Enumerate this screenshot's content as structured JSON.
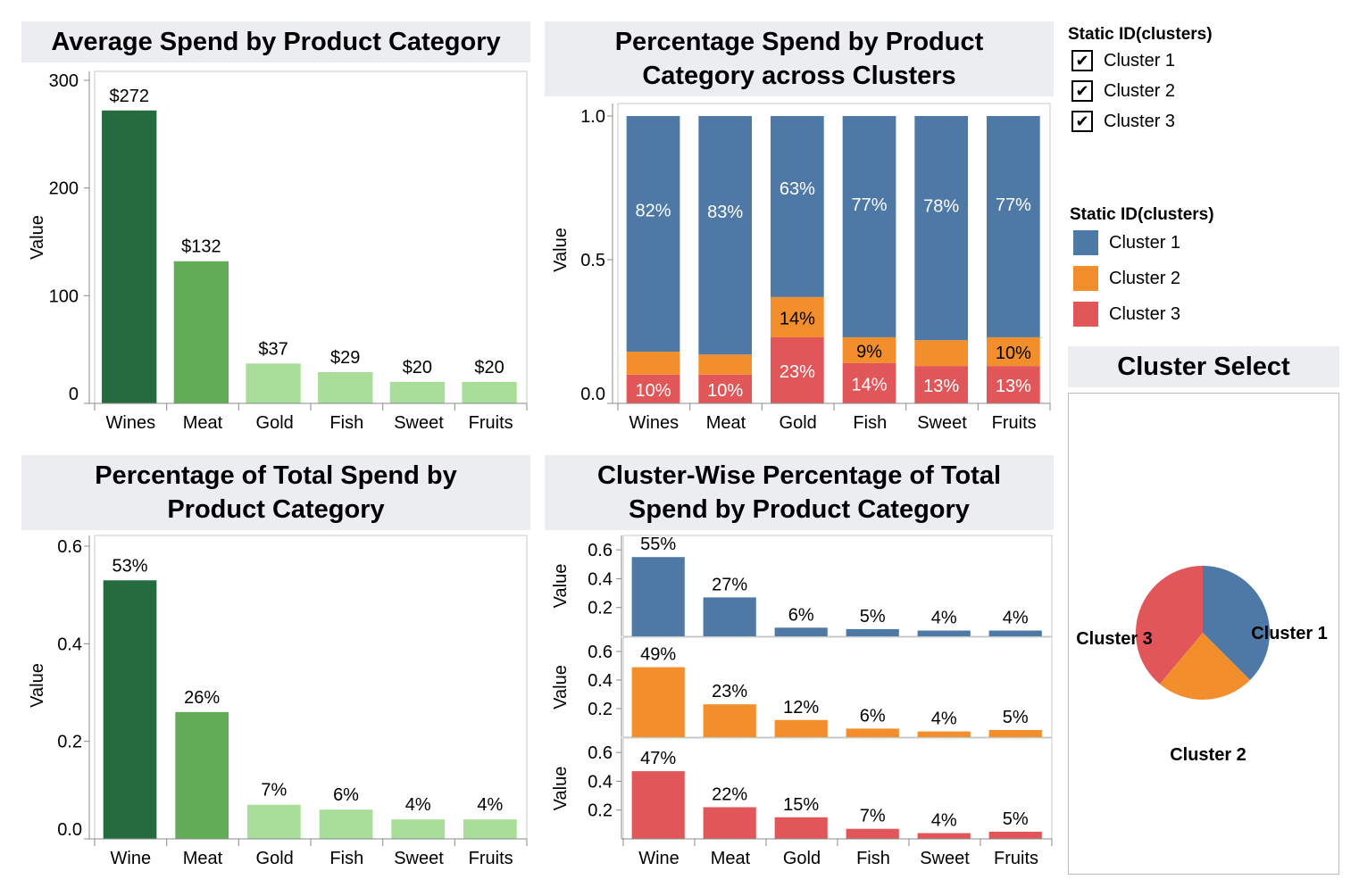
{
  "colors": {
    "cluster1": "#4e79a7",
    "cluster2": "#f28e2b",
    "cluster3": "#e15759",
    "green_dark": "#246b3e",
    "green_mid": "#62ab57",
    "green_light": "#a8de99",
    "title_bg": "#ebedf0"
  },
  "titles": {
    "avg_spend": "Average Spend by Product Category",
    "pct_spend_clusters_line1": "Percentage Spend by Product",
    "pct_spend_clusters_line2": "Category across Clusters",
    "pct_total_line1": "Percentage of Total Spend by",
    "pct_total_line2": "Product Category",
    "cluster_wise_line1": "Cluster-Wise Percentage of Total",
    "cluster_wise_line2": "Spend by Product Category",
    "cluster_select": "Cluster Select"
  },
  "filter": {
    "heading": "Static ID(clusters)",
    "items": [
      {
        "label": "Cluster 1",
        "checked": "✔"
      },
      {
        "label": "Cluster 2",
        "checked": "✔"
      },
      {
        "label": "Cluster 3",
        "checked": "✔"
      }
    ]
  },
  "legend": {
    "heading": "Static ID(clusters)",
    "items": [
      {
        "label": "Cluster 1",
        "color": "#4e79a7"
      },
      {
        "label": "Cluster 2",
        "color": "#f28e2b"
      },
      {
        "label": "Cluster 3",
        "color": "#e15759"
      }
    ]
  },
  "chart_data": [
    {
      "id": "avg_spend",
      "type": "bar",
      "title": "Average Spend by Product Category",
      "ylabel": "Value",
      "ylim": [
        0,
        300
      ],
      "yticks": [
        0,
        100,
        200,
        300
      ],
      "categories": [
        "Wines",
        "Meat",
        "Gold",
        "Fish",
        "Sweet",
        "Fruits"
      ],
      "values": [
        272,
        132,
        37,
        29,
        20,
        20
      ],
      "labels": [
        "$272",
        "$132",
        "$37",
        "$29",
        "$20",
        "$20"
      ],
      "bar_colors": [
        "#246b3e",
        "#62ab57",
        "#a8de99",
        "#a8de99",
        "#a8de99",
        "#a8de99"
      ]
    },
    {
      "id": "pct_spend_clusters",
      "type": "bar",
      "stacked": true,
      "title": "Percentage Spend by Product Category across Clusters",
      "ylabel": "Value",
      "ylim": [
        0,
        1.0
      ],
      "yticks": [
        "0.0",
        "0.5",
        "1.0"
      ],
      "categories": [
        "Wines",
        "Meat",
        "Gold",
        "Fish",
        "Sweet",
        "Fruits"
      ],
      "series": [
        {
          "name": "Cluster 3",
          "values": [
            0.1,
            0.1,
            0.23,
            0.14,
            0.13,
            0.13
          ],
          "labels": [
            "10%",
            "10%",
            "23%",
            "14%",
            "13%",
            "13%"
          ]
        },
        {
          "name": "Cluster 2",
          "values": [
            0.08,
            0.07,
            0.14,
            0.09,
            0.09,
            0.1
          ],
          "labels": [
            "",
            "",
            "14%",
            "9%",
            "",
            "10%"
          ]
        },
        {
          "name": "Cluster 1",
          "values": [
            0.82,
            0.83,
            0.63,
            0.77,
            0.78,
            0.77
          ],
          "labels": [
            "82%",
            "83%",
            "63%",
            "77%",
            "78%",
            "77%"
          ]
        }
      ]
    },
    {
      "id": "pct_total",
      "type": "bar",
      "title": "Percentage of Total Spend by Product Category",
      "ylabel": "Value",
      "ylim": [
        0,
        0.6
      ],
      "yticks": [
        "0.0",
        "0.2",
        "0.4",
        "0.6"
      ],
      "categories": [
        "Wine",
        "Meat",
        "Gold",
        "Fish",
        "Sweet",
        "Fruits"
      ],
      "values": [
        0.53,
        0.26,
        0.07,
        0.06,
        0.04,
        0.04
      ],
      "labels": [
        "53%",
        "26%",
        "7%",
        "6%",
        "4%",
        "4%"
      ],
      "bar_colors": [
        "#246b3e",
        "#62ab57",
        "#a8de99",
        "#a8de99",
        "#a8de99",
        "#a8de99"
      ]
    },
    {
      "id": "cluster_wise",
      "type": "bar",
      "title": "Cluster-Wise Percentage of Total Spend by Product Category",
      "ylabel": "Value",
      "ylim": [
        0,
        0.7
      ],
      "yticks": [
        "0.2",
        "0.4",
        "0.6"
      ],
      "categories": [
        "Wine",
        "Meat",
        "Gold",
        "Fish",
        "Sweet",
        "Fruits"
      ],
      "series": [
        {
          "name": "Cluster 1",
          "values": [
            0.55,
            0.27,
            0.06,
            0.05,
            0.04,
            0.04
          ],
          "labels": [
            "55%",
            "27%",
            "6%",
            "5%",
            "4%",
            "4%"
          ]
        },
        {
          "name": "Cluster 2",
          "values": [
            0.49,
            0.23,
            0.12,
            0.06,
            0.04,
            0.05
          ],
          "labels": [
            "49%",
            "23%",
            "12%",
            "6%",
            "4%",
            "5%"
          ]
        },
        {
          "name": "Cluster 3",
          "values": [
            0.47,
            0.22,
            0.15,
            0.07,
            0.04,
            0.05
          ],
          "labels": [
            "47%",
            "22%",
            "15%",
            "7%",
            "4%",
            "5%"
          ]
        }
      ]
    },
    {
      "id": "cluster_select",
      "type": "pie",
      "title": "Cluster Select",
      "slices": [
        {
          "name": "Cluster 1",
          "value": 0.375
        },
        {
          "name": "Cluster 2",
          "value": 0.236
        },
        {
          "name": "Cluster 3",
          "value": 0.389
        }
      ]
    }
  ]
}
